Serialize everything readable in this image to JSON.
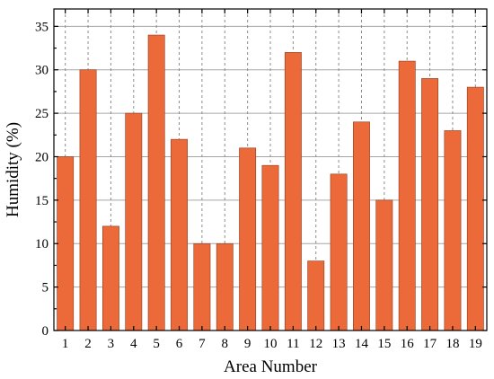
{
  "chart_data": {
    "type": "bar",
    "categories": [
      "1",
      "2",
      "3",
      "4",
      "5",
      "6",
      "7",
      "8",
      "9",
      "10",
      "11",
      "12",
      "13",
      "14",
      "15",
      "16",
      "17",
      "18",
      "19"
    ],
    "values": [
      20,
      30,
      12,
      25,
      34,
      22,
      10,
      10,
      21,
      19,
      32,
      8,
      18,
      24,
      15,
      31,
      29,
      23,
      28
    ],
    "xlabel": "Area Number",
    "ylabel": "Humidity (%)",
    "ylim": [
      0,
      37
    ],
    "yticks": [
      0,
      5,
      10,
      15,
      20,
      25,
      30,
      35
    ],
    "grid": true,
    "bar_color": "#ec6a3a",
    "bar_edge_color": "#8a3a1c"
  }
}
